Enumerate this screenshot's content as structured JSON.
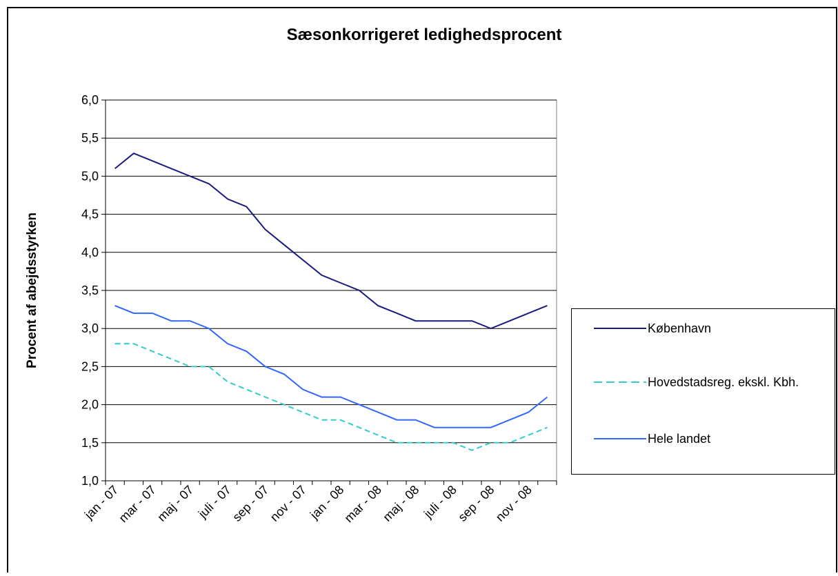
{
  "chart_data": {
    "type": "line",
    "title": "Sæsonkorrigeret ledighedsprocent",
    "y_label": "Procent af abejdsstyrken",
    "categories": [
      "jan - 07",
      null,
      "mar - 07",
      null,
      "maj - 07",
      null,
      "juli - 07",
      null,
      "sep - 07",
      null,
      "nov - 07",
      null,
      "jan - 08",
      null,
      "mar - 08",
      null,
      "maj - 08",
      null,
      "juli - 08",
      null,
      "sep - 08",
      null,
      "nov - 08",
      null
    ],
    "series": [
      {
        "name": "København",
        "color": "#1a1a80",
        "dashed": false,
        "values": [
          5.1,
          5.3,
          5.2,
          5.1,
          5.0,
          4.9,
          4.7,
          4.6,
          4.3,
          4.1,
          3.9,
          3.7,
          3.6,
          3.5,
          3.3,
          3.2,
          3.1,
          3.1,
          3.1,
          3.1,
          3.0,
          3.1,
          3.2,
          3.3
        ]
      },
      {
        "name": "Hovedstadsreg. ekskl. Kbh.",
        "color": "#33cccc",
        "dashed": true,
        "values": [
          2.8,
          2.8,
          2.7,
          2.6,
          2.5,
          2.5,
          2.3,
          2.2,
          2.1,
          2.0,
          1.9,
          1.8,
          1.8,
          1.7,
          1.6,
          1.5,
          1.5,
          1.5,
          1.5,
          1.4,
          1.5,
          1.5,
          1.6,
          1.7
        ]
      },
      {
        "name": "Hele landet",
        "color": "#3366ff",
        "dashed": false,
        "values": [
          3.3,
          3.2,
          3.2,
          3.1,
          3.1,
          3.0,
          2.8,
          2.7,
          2.5,
          2.4,
          2.2,
          2.1,
          2.1,
          2.0,
          1.9,
          1.8,
          1.8,
          1.7,
          1.7,
          1.7,
          1.7,
          1.8,
          1.9,
          2.1
        ]
      }
    ],
    "ylim": [
      1.0,
      6.0
    ],
    "yticks": [
      {
        "value": 1.0,
        "label": "1,0"
      },
      {
        "value": 1.5,
        "label": "1,5"
      },
      {
        "value": 2.0,
        "label": "2,0"
      },
      {
        "value": 2.5,
        "label": "2,5"
      },
      {
        "value": 3.0,
        "label": "3,0"
      },
      {
        "value": 3.5,
        "label": "3,5"
      },
      {
        "value": 4.0,
        "label": "4,0"
      },
      {
        "value": 4.5,
        "label": "4,5"
      },
      {
        "value": 5.0,
        "label": "5,0"
      },
      {
        "value": 5.5,
        "label": "5,5"
      },
      {
        "value": 6.0,
        "label": "6,0"
      }
    ],
    "grid": true
  }
}
